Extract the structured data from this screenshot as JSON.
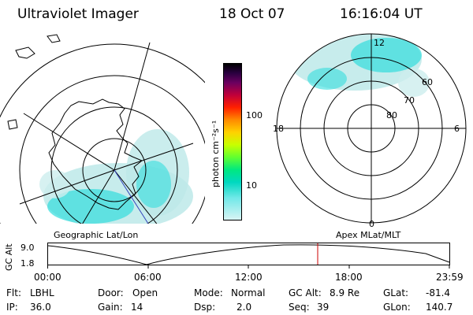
{
  "header": {
    "instrument": "Ultraviolet Imager",
    "date": "18 Oct 07",
    "time": "16:16:04 UT"
  },
  "left_panel": {
    "label": "Geographic Lat/Lon"
  },
  "right_panel": {
    "label": "Apex MLat/MLT",
    "mlt_labels": [
      "12",
      "18",
      "6",
      "0"
    ],
    "lat_labels": [
      "60",
      "70",
      "80"
    ]
  },
  "colorbar": {
    "unit": "photon cm⁻²s⁻¹",
    "ticks": [
      "100",
      "10"
    ]
  },
  "timeline": {
    "ylabel": "GC Alt",
    "y_ticks": [
      "9.0",
      "1.8"
    ],
    "x_ticks": [
      "00:00",
      "06:00",
      "12:00",
      "18:00",
      "23:59"
    ]
  },
  "info": {
    "flt_label": "Flt:",
    "flt_value": "LBHL",
    "ip_label": "IP:",
    "ip_value": "36.0",
    "door_label": "Door:",
    "door_value": "Open",
    "gain_label": "Gain:",
    "gain_value": "14",
    "mode_label": "Mode:",
    "mode_value": "Normal",
    "dsp_label": "Dsp:",
    "dsp_value": "2.0",
    "gcalt_label": "GC Alt:",
    "gcalt_value": "8.9 Re",
    "seq_label": "Seq:",
    "seq_value": "39",
    "glat_label": "GLat:",
    "glat_value": "-81.4",
    "glon_label": "GLon:",
    "glon_value": "140.7"
  },
  "colors": {
    "aurora": "#33dddd",
    "aurora_light": "#bde9e9",
    "current_time_marker": "#cc0000"
  }
}
